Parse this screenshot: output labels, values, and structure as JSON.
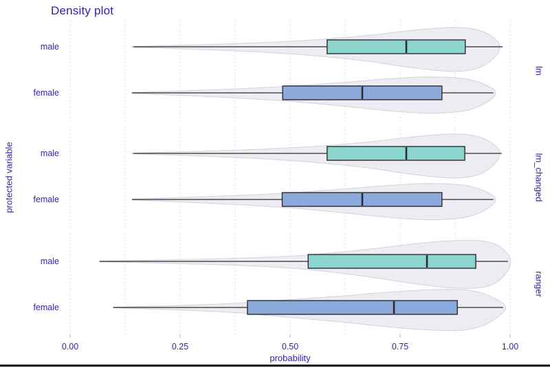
{
  "title": "Density plot",
  "colors": {
    "text": "#371EA3",
    "male_fill": "#8CD4CE",
    "female_fill": "#8BA9DA",
    "box_stroke": "#2B2B30",
    "violin_fill": "#E9E9F0",
    "violin_stroke": "#D2D2DD",
    "grid": "#DEDEE8",
    "tick": "#C2C2CE",
    "bottom_bar": "#000000"
  },
  "axes": {
    "x_label": "probability",
    "y_label": "protected variable",
    "x_tick_labels": [
      "0.00",
      "0.25",
      "0.50",
      "0.75",
      "1.00"
    ],
    "x_tick_values": [
      0,
      0.25,
      0.5,
      0.75,
      1
    ]
  },
  "chart_data": {
    "type": "violin",
    "title": "Density plot",
    "xlabel": "probability",
    "ylabel": "protected variable",
    "xlim": [
      0,
      1
    ],
    "grid": "dotted, vertical, every 0.125",
    "legend": "none",
    "facets": [
      {
        "label": "lm",
        "rows": [
          {
            "group": "male",
            "stats": {
              "whisker_min": 0.144,
              "q1": 0.584,
              "median": 0.764,
              "q3": 0.898,
              "whisker_max": 0.983
            },
            "violin_profile": [
              [
                0.14,
                0.5
              ],
              [
                0.22,
                2
              ],
              [
                0.32,
                4
              ],
              [
                0.42,
                6.5
              ],
              [
                0.52,
                10
              ],
              [
                0.6,
                14
              ],
              [
                0.68,
                19
              ],
              [
                0.75,
                25
              ],
              [
                0.82,
                30
              ],
              [
                0.875,
                32
              ],
              [
                0.92,
                29
              ],
              [
                0.95,
                21
              ],
              [
                0.97,
                10
              ],
              [
                0.976,
                3
              ]
            ]
          },
          {
            "group": "female",
            "stats": {
              "whisker_min": 0.141,
              "q1": 0.483,
              "median": 0.664,
              "q3": 0.845,
              "whisker_max": 0.962
            },
            "violin_profile": [
              [
                0.14,
                0.5
              ],
              [
                0.22,
                2.5
              ],
              [
                0.32,
                5
              ],
              [
                0.42,
                8
              ],
              [
                0.5,
                11
              ],
              [
                0.58,
                15
              ],
              [
                0.65,
                19
              ],
              [
                0.72,
                23
              ],
              [
                0.79,
                26
              ],
              [
                0.85,
                26
              ],
              [
                0.9,
                23
              ],
              [
                0.935,
                16
              ],
              [
                0.96,
                7
              ],
              [
                0.966,
                2.5
              ]
            ]
          }
        ]
      },
      {
        "label": "lm_changed",
        "rows": [
          {
            "group": "male",
            "stats": {
              "whisker_min": 0.144,
              "q1": 0.584,
              "median": 0.764,
              "q3": 0.897,
              "whisker_max": 0.981
            },
            "violin_profile": [
              [
                0.14,
                0.5
              ],
              [
                0.22,
                2
              ],
              [
                0.32,
                4
              ],
              [
                0.42,
                6.5
              ],
              [
                0.52,
                10
              ],
              [
                0.6,
                14
              ],
              [
                0.68,
                19
              ],
              [
                0.75,
                25
              ],
              [
                0.82,
                30
              ],
              [
                0.875,
                32
              ],
              [
                0.92,
                29
              ],
              [
                0.95,
                21
              ],
              [
                0.97,
                10
              ],
              [
                0.976,
                3
              ]
            ]
          },
          {
            "group": "female",
            "stats": {
              "whisker_min": 0.141,
              "q1": 0.482,
              "median": 0.664,
              "q3": 0.845,
              "whisker_max": 0.962
            },
            "violin_profile": [
              [
                0.14,
                0.5
              ],
              [
                0.22,
                2.5
              ],
              [
                0.32,
                5
              ],
              [
                0.42,
                8
              ],
              [
                0.5,
                11
              ],
              [
                0.58,
                15
              ],
              [
                0.65,
                19
              ],
              [
                0.72,
                23
              ],
              [
                0.79,
                26
              ],
              [
                0.85,
                26
              ],
              [
                0.9,
                23
              ],
              [
                0.935,
                16
              ],
              [
                0.96,
                7
              ],
              [
                0.966,
                2.5
              ]
            ]
          }
        ]
      },
      {
        "label": "ranger",
        "rows": [
          {
            "group": "male",
            "stats": {
              "whisker_min": 0.067,
              "q1": 0.541,
              "median": 0.811,
              "q3": 0.922,
              "whisker_max": 0.995
            },
            "violin_profile": [
              [
                0.067,
                0.5
              ],
              [
                0.15,
                1.5
              ],
              [
                0.25,
                3
              ],
              [
                0.35,
                4.5
              ],
              [
                0.45,
                7
              ],
              [
                0.53,
                10
              ],
              [
                0.61,
                15
              ],
              [
                0.69,
                21
              ],
              [
                0.77,
                28
              ],
              [
                0.84,
                33
              ],
              [
                0.9,
                35
              ],
              [
                0.945,
                33
              ],
              [
                0.975,
                25
              ],
              [
                0.995,
                12
              ],
              [
                1.0,
                4
              ]
            ]
          },
          {
            "group": "female",
            "stats": {
              "whisker_min": 0.098,
              "q1": 0.403,
              "median": 0.736,
              "q3": 0.88,
              "whisker_max": 0.984
            },
            "violin_profile": [
              [
                0.098,
                0.5
              ],
              [
                0.18,
                2
              ],
              [
                0.28,
                4
              ],
              [
                0.38,
                7
              ],
              [
                0.46,
                11
              ],
              [
                0.54,
                15
              ],
              [
                0.62,
                19
              ],
              [
                0.7,
                24
              ],
              [
                0.78,
                28
              ],
              [
                0.85,
                30
              ],
              [
                0.9,
                29
              ],
              [
                0.94,
                23
              ],
              [
                0.97,
                13
              ],
              [
                0.988,
                4
              ]
            ]
          }
        ]
      }
    ]
  }
}
